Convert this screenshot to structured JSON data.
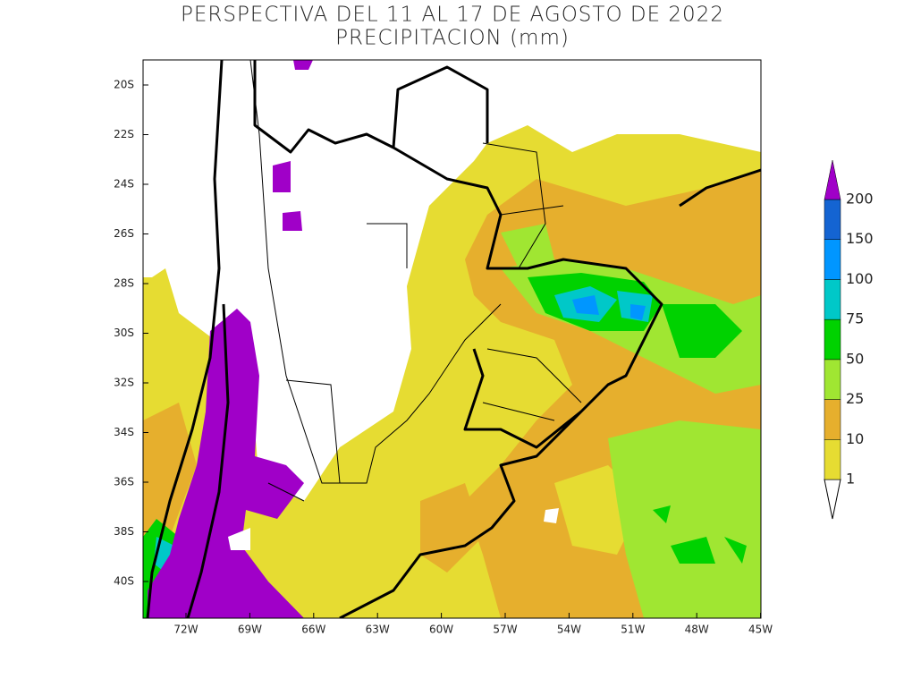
{
  "title": [
    "PERSPECTIVA DEL 11 AL 17 DE AGOSTO DE 2022",
    "PRECIPITACION (mm)"
  ],
  "lat_labels": [
    "20S",
    "22S",
    "24S",
    "26S",
    "28S",
    "30S",
    "32S",
    "34S",
    "36S",
    "38S",
    "40S"
  ],
  "lon_labels": [
    "72W",
    "69W",
    "66W",
    "63W",
    "60W",
    "57W",
    "54W",
    "51W",
    "48W",
    "45W"
  ],
  "legend": {
    "levels": [
      {
        "value": 1,
        "color": "#e6dc32"
      },
      {
        "value": 10,
        "color": "#e6af2d"
      },
      {
        "value": 25,
        "color": "#a0e632"
      },
      {
        "value": 50,
        "color": "#00d200"
      },
      {
        "value": 75,
        "color": "#00c8c8"
      },
      {
        "value": 100,
        "color": "#0096ff"
      },
      {
        "value": 150,
        "color": "#1464d2"
      },
      {
        "value": 200,
        "color": "#a000c8"
      }
    ]
  }
}
